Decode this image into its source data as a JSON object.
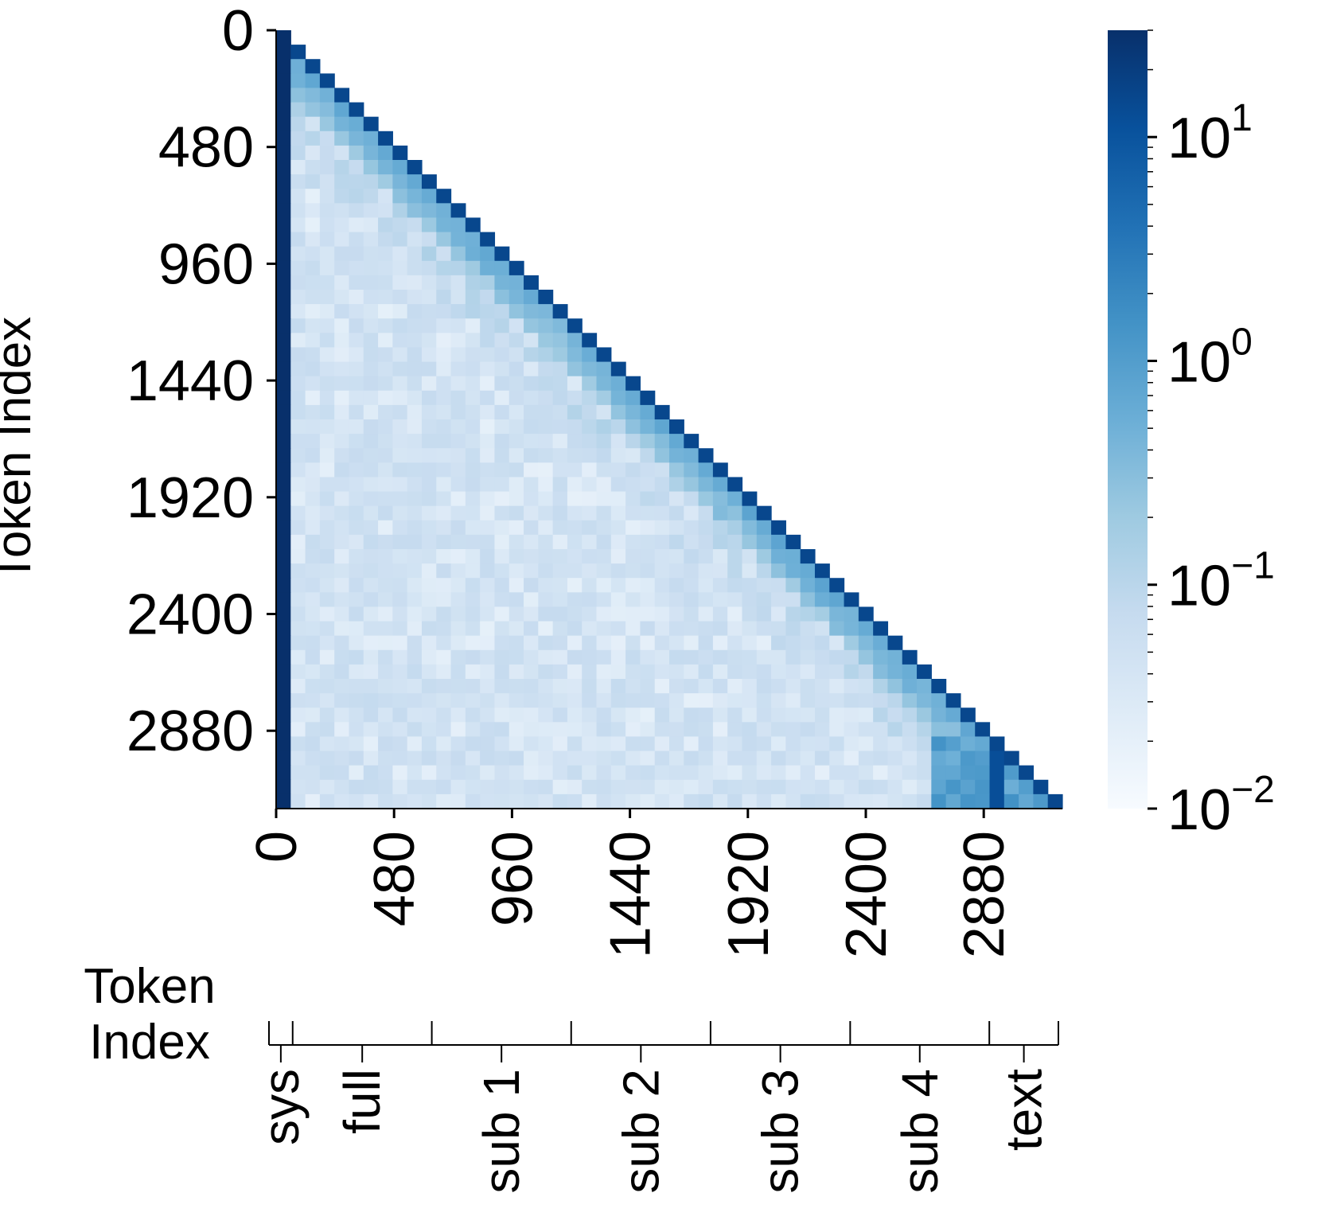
{
  "chart_data": {
    "type": "heatmap",
    "title": "",
    "xlabel": "Token Index",
    "ylabel": "Token Index",
    "x_tick_labels": [
      "0",
      "480",
      "960",
      "1440",
      "1920",
      "2400",
      "2880"
    ],
    "y_tick_labels": [
      "0",
      "480",
      "960",
      "1440",
      "1920",
      "2400",
      "2880"
    ],
    "tick_values": [
      0,
      480,
      960,
      1440,
      1920,
      2400,
      2880
    ],
    "n_tokens": 3200,
    "grid_size": 54,
    "mask": "upper-triangle (causal attention, lower triangle shown)",
    "scale": "log",
    "colormap": "Blues",
    "vmin": 0.01,
    "vmax": 30,
    "colorbar_ticks": [
      {
        "base": "10",
        "exp": "1",
        "value": 10
      },
      {
        "base": "10",
        "exp": "0",
        "value": 1
      },
      {
        "base": "10",
        "exp": "−1",
        "value": 0.1
      },
      {
        "base": "10",
        "exp": "−2",
        "value": 0.01
      }
    ],
    "approx_values": {
      "first_column_sink": 30,
      "diagonal": 15,
      "near_diagonal": 0.6,
      "off_diagonal_background": 0.04
    },
    "segments": [
      {
        "label": "sys",
        "start": 0,
        "end": 96
      },
      {
        "label": "full",
        "start": 96,
        "end": 660
      },
      {
        "label": "sub 1",
        "start": 660,
        "end": 1225
      },
      {
        "label": "sub 2",
        "start": 1225,
        "end": 1790
      },
      {
        "label": "sub 3",
        "start": 1790,
        "end": 2356
      },
      {
        "label": "sub 4",
        "start": 2356,
        "end": 2920
      },
      {
        "label": "text",
        "start": 2920,
        "end": 3200
      }
    ],
    "grid": false
  },
  "colors": {
    "cmap": [
      "#f7fbff",
      "#deebf7",
      "#c6dbef",
      "#9ecae1",
      "#6baed6",
      "#4292c6",
      "#2171b5",
      "#08519c",
      "#08306b"
    ],
    "text": "#000000"
  }
}
